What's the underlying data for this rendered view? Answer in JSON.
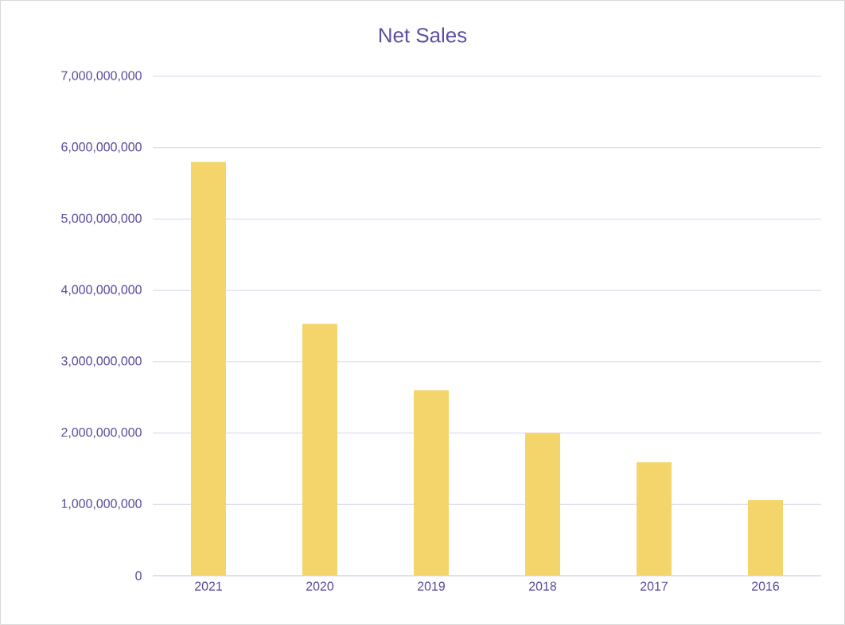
{
  "chart_data": {
    "type": "bar",
    "title": "Net Sales",
    "categories": [
      "2021",
      "2020",
      "2019",
      "2018",
      "2017",
      "2016"
    ],
    "values": [
      5800000000,
      3530000000,
      2600000000,
      2000000000,
      1590000000,
      1060000000
    ],
    "color": "#f3d56b",
    "ylim": [
      0,
      7000000000
    ],
    "yticks": [
      0,
      {
        "value": 1000000000,
        "label": "1,000,000,000"
      },
      {
        "value": 2000000000,
        "label": "2,000,000,000"
      },
      {
        "value": 3000000000,
        "label": "3,000,000,000"
      },
      {
        "value": 4000000000,
        "label": "4,000,000,000"
      },
      {
        "value": 5000000000,
        "label": "5,000,000,000"
      },
      {
        "value": 6000000000,
        "label": "6,000,000,000"
      },
      {
        "value": 7000000000,
        "label": "7,000,000,000"
      }
    ],
    "grid": "y"
  }
}
